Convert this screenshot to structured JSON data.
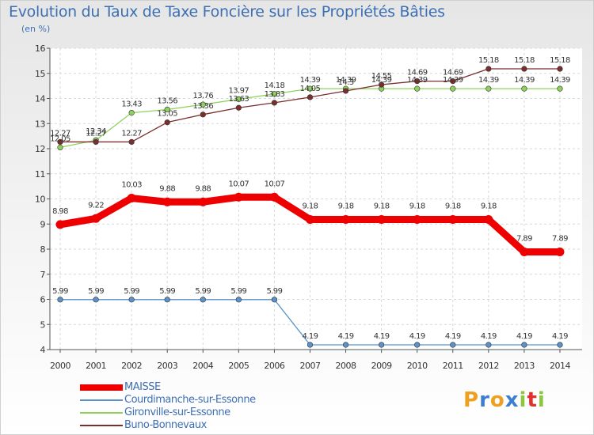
{
  "header": {
    "title": "Evolution du Taux de Taxe Foncière sur les Propriétés Bâties",
    "unit": "(en %)"
  },
  "colors": {
    "title": "#3d6fb4",
    "grid": "#d9d9d9",
    "axis": "#555555"
  },
  "chart_data": {
    "type": "line",
    "title": "Evolution du Taux de Taxe Foncière sur les Propriétés Bâties",
    "ylabel": "(en %)",
    "xlabel": "",
    "ylim": [
      4,
      16
    ],
    "yticks": [
      "4",
      "5",
      "6",
      "7",
      "8",
      "9",
      "10",
      "11",
      "12",
      "13",
      "14",
      "15",
      "16"
    ],
    "categories": [
      "2000",
      "2001",
      "2002",
      "2003",
      "2004",
      "2005",
      "2006",
      "2007",
      "2008",
      "2009",
      "2010",
      "2011",
      "2012",
      "2013",
      "2014"
    ],
    "grid": true,
    "legend_position": "bottom-left",
    "series": [
      {
        "name": "MAISSE",
        "color": "#ee0000",
        "values": [
          8.98,
          9.22,
          10.03,
          9.88,
          9.88,
          10.07,
          10.07,
          9.18,
          9.18,
          9.18,
          9.18,
          9.18,
          9.18,
          7.89,
          7.89
        ],
        "labels": [
          "8.98",
          "9.22",
          "10.03",
          "9.88",
          "9.88",
          "10.07",
          "10.07",
          "9.18",
          "9.18",
          "9.18",
          "9.18",
          "9.18",
          "9.18",
          "7.89",
          "7.89"
        ]
      },
      {
        "name": "Courdimanche-sur-Essonne",
        "color": "#5b93c9",
        "values": [
          5.99,
          5.99,
          5.99,
          5.99,
          5.99,
          5.99,
          5.99,
          4.19,
          4.19,
          4.19,
          4.19,
          4.19,
          4.19,
          4.19,
          4.19
        ],
        "labels": [
          "5.99",
          "5.99",
          "5.99",
          "5.99",
          "5.99",
          "5.99",
          "5.99",
          "4.19",
          "4.19",
          "4.19",
          "4.19",
          "4.19",
          "4.19",
          "4.19",
          "4.19"
        ]
      },
      {
        "name": "Gironville-sur-Essonne",
        "color": "#8fd25b",
        "values": [
          12.05,
          12.34,
          13.43,
          13.56,
          13.76,
          13.97,
          14.18,
          14.39,
          14.39,
          14.39,
          14.39,
          14.39,
          14.39,
          14.39,
          14.39
        ],
        "labels": [
          "12.05",
          "12.34",
          "13.43",
          "13.56",
          "13.76",
          "13.97",
          "14.18",
          "14.39",
          "14.39",
          "14.39",
          "14.39",
          "14.39",
          "14.39",
          "14.39",
          "14.39"
        ]
      },
      {
        "name": "Buno-Bonnevaux",
        "color": "#7a2e2e",
        "values": [
          12.27,
          12.27,
          12.27,
          13.05,
          13.36,
          13.63,
          13.83,
          14.05,
          14.3,
          14.55,
          14.69,
          14.69,
          15.18,
          15.18,
          15.18
        ],
        "labels": [
          "12.27",
          "12.27",
          "12.27",
          "13.05",
          "13.36",
          "13.63",
          "13.83",
          "14.05",
          "14.3",
          "14.55",
          "14.69",
          "14.69",
          "15.18",
          "15.18",
          "15.18"
        ]
      }
    ]
  },
  "logo": {
    "letters": [
      "P",
      "r",
      "o",
      "x",
      "i",
      "t",
      "i"
    ],
    "colors": [
      "#f0a020",
      "#3d7fcf",
      "#f0a020",
      "#3d7fcf",
      "#8cc63f",
      "#e03030",
      "#8cc63f"
    ]
  }
}
